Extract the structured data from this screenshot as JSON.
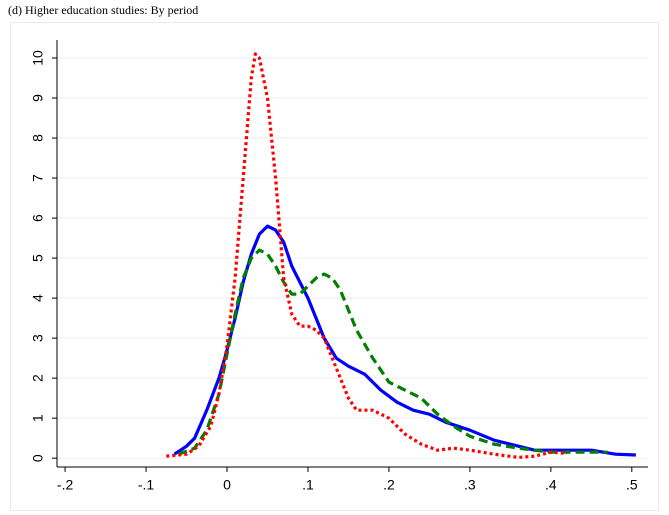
{
  "chart_data": {
    "type": "line",
    "title": "(d) Higher education studies: By period",
    "xlim": [
      -0.21,
      0.52
    ],
    "ylim": [
      -0.22,
      10.45
    ],
    "xticks": [
      {
        "value": -0.2,
        "label": "-.2"
      },
      {
        "value": -0.1,
        "label": "-.1"
      },
      0,
      {
        "value": 0.1,
        "label": ".1"
      },
      {
        "value": 0.2,
        "label": ".2"
      },
      {
        "value": 0.3,
        "label": ".3"
      },
      {
        "value": 0.4,
        "label": ".4"
      },
      {
        "value": 0.5,
        "label": ".5"
      }
    ],
    "yticks": [
      0,
      1,
      2,
      3,
      4,
      5,
      6,
      7,
      8,
      9,
      10
    ],
    "grid": true,
    "series": [
      {
        "color": "#0000ff",
        "dash": "solid",
        "x": [
          -0.065,
          -0.05,
          -0.04,
          -0.025,
          -0.01,
          0.0,
          0.01,
          0.02,
          0.03,
          0.04,
          0.05,
          0.06,
          0.07,
          0.08,
          0.09,
          0.1,
          0.11,
          0.12,
          0.135,
          0.15,
          0.17,
          0.19,
          0.21,
          0.23,
          0.25,
          0.27,
          0.3,
          0.33,
          0.36,
          0.38,
          0.42,
          0.45,
          0.48,
          0.505
        ],
        "values": [
          0.1,
          0.3,
          0.5,
          1.2,
          2.0,
          2.7,
          3.5,
          4.4,
          5.1,
          5.6,
          5.8,
          5.7,
          5.4,
          4.8,
          4.4,
          4.0,
          3.5,
          3.0,
          2.5,
          2.3,
          2.1,
          1.7,
          1.4,
          1.2,
          1.1,
          0.9,
          0.7,
          0.45,
          0.3,
          0.2,
          0.2,
          0.2,
          0.1,
          0.08
        ]
      },
      {
        "color": "#007f00",
        "dash": "dashed",
        "x": [
          -0.06,
          -0.04,
          -0.025,
          -0.01,
          0.0,
          0.01,
          0.02,
          0.03,
          0.04,
          0.05,
          0.06,
          0.07,
          0.08,
          0.09,
          0.1,
          0.11,
          0.12,
          0.13,
          0.14,
          0.15,
          0.16,
          0.18,
          0.2,
          0.22,
          0.24,
          0.26,
          0.28,
          0.3,
          0.33,
          0.36,
          0.4,
          0.44,
          0.47
        ],
        "values": [
          0.1,
          0.25,
          0.7,
          1.6,
          2.6,
          3.6,
          4.5,
          5.0,
          5.2,
          5.1,
          4.8,
          4.4,
          4.1,
          4.1,
          4.3,
          4.5,
          4.6,
          4.5,
          4.2,
          3.7,
          3.2,
          2.5,
          1.9,
          1.7,
          1.5,
          1.1,
          0.8,
          0.55,
          0.35,
          0.25,
          0.15,
          0.15,
          0.15
        ]
      },
      {
        "color": "#ff0000",
        "dash": "dotted",
        "x": [
          -0.075,
          -0.05,
          -0.035,
          -0.02,
          -0.01,
          0.0,
          0.01,
          0.02,
          0.03,
          0.035,
          0.04,
          0.05,
          0.06,
          0.07,
          0.08,
          0.09,
          0.1,
          0.11,
          0.12,
          0.13,
          0.14,
          0.15,
          0.16,
          0.18,
          0.2,
          0.22,
          0.24,
          0.26,
          0.28,
          0.3,
          0.33,
          0.36,
          0.38,
          0.4,
          0.42
        ],
        "values": [
          0.05,
          0.1,
          0.3,
          0.8,
          1.6,
          2.8,
          4.5,
          7.0,
          9.5,
          10.1,
          10.0,
          9.0,
          7.0,
          4.5,
          3.6,
          3.3,
          3.3,
          3.2,
          3.0,
          2.5,
          2.0,
          1.5,
          1.2,
          1.2,
          1.0,
          0.6,
          0.35,
          0.2,
          0.25,
          0.2,
          0.1,
          0.02,
          0.05,
          0.15,
          0.12
        ]
      }
    ]
  }
}
